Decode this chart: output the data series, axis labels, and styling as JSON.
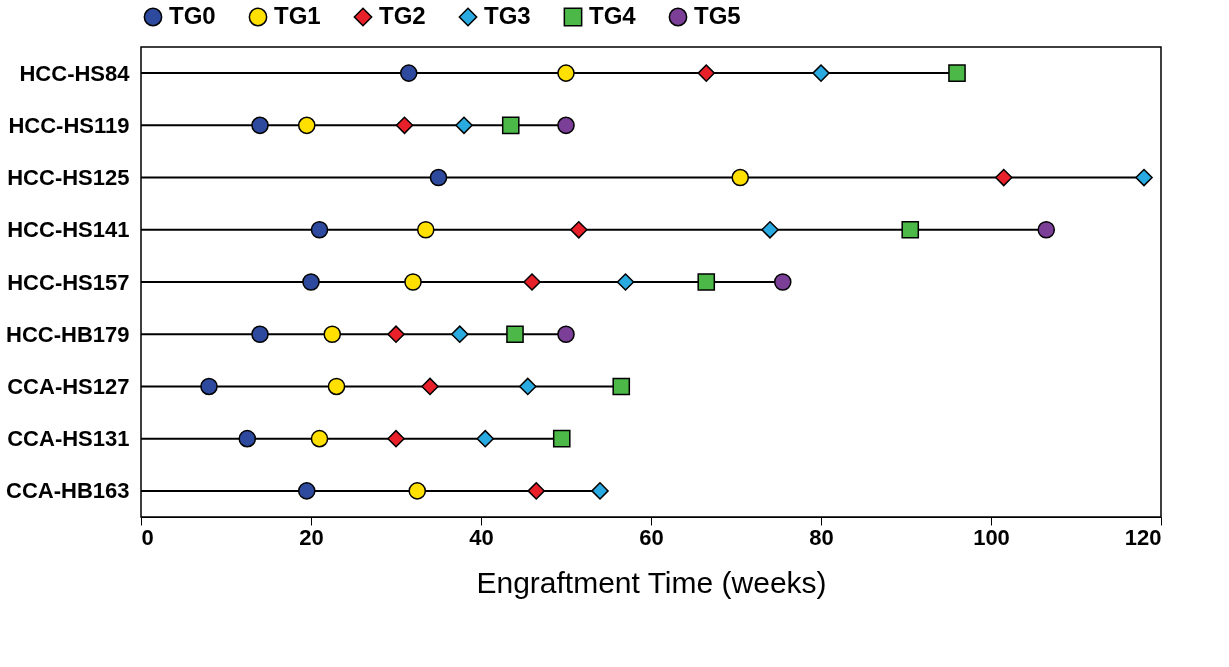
{
  "chart_data": {
    "type": "scatter",
    "orientation": "horizontal",
    "xlabel": "Engraftment Time (weeks)",
    "categories": [
      "HCC-HS84",
      "HCC-HS119",
      "HCC-HS125",
      "HCC-HS141",
      "HCC-HS157",
      "HCC-HB179",
      "CCA-HS127",
      "CCA-HS131",
      "CCA-HB163"
    ],
    "xlim": [
      0,
      120
    ],
    "xticks": [
      0,
      20,
      40,
      60,
      80,
      100,
      120
    ],
    "grid": false,
    "legend": "top",
    "series": [
      {
        "name": "TG0",
        "color": "#2e4a9e",
        "marker": "circle",
        "values": [
          31.5,
          14,
          35,
          21,
          20,
          14,
          8,
          12.5,
          19.5
        ]
      },
      {
        "name": "TG1",
        "color": "#ffe000",
        "marker": "circle",
        "values": [
          50,
          19.5,
          70.5,
          33.5,
          32,
          22.5,
          23,
          21,
          32.5
        ]
      },
      {
        "name": "TG2",
        "color": "#e8202a",
        "marker": "diamond",
        "values": [
          66.5,
          31,
          101.5,
          51.5,
          46,
          30,
          34,
          30,
          46.5
        ]
      },
      {
        "name": "TG3",
        "color": "#29abe2",
        "marker": "diamond",
        "values": [
          80,
          38,
          118,
          74,
          57,
          37.5,
          45.5,
          40.5,
          54
        ]
      },
      {
        "name": "TG4",
        "color": "#4cb848",
        "marker": "square",
        "values": [
          96,
          43.5,
          null,
          90.5,
          66.5,
          44,
          56.5,
          49.5,
          null
        ]
      },
      {
        "name": "TG5",
        "color": "#7b3f98",
        "marker": "circle",
        "values": [
          null,
          50,
          null,
          106.5,
          75.5,
          50,
          null,
          null,
          null
        ]
      }
    ]
  }
}
